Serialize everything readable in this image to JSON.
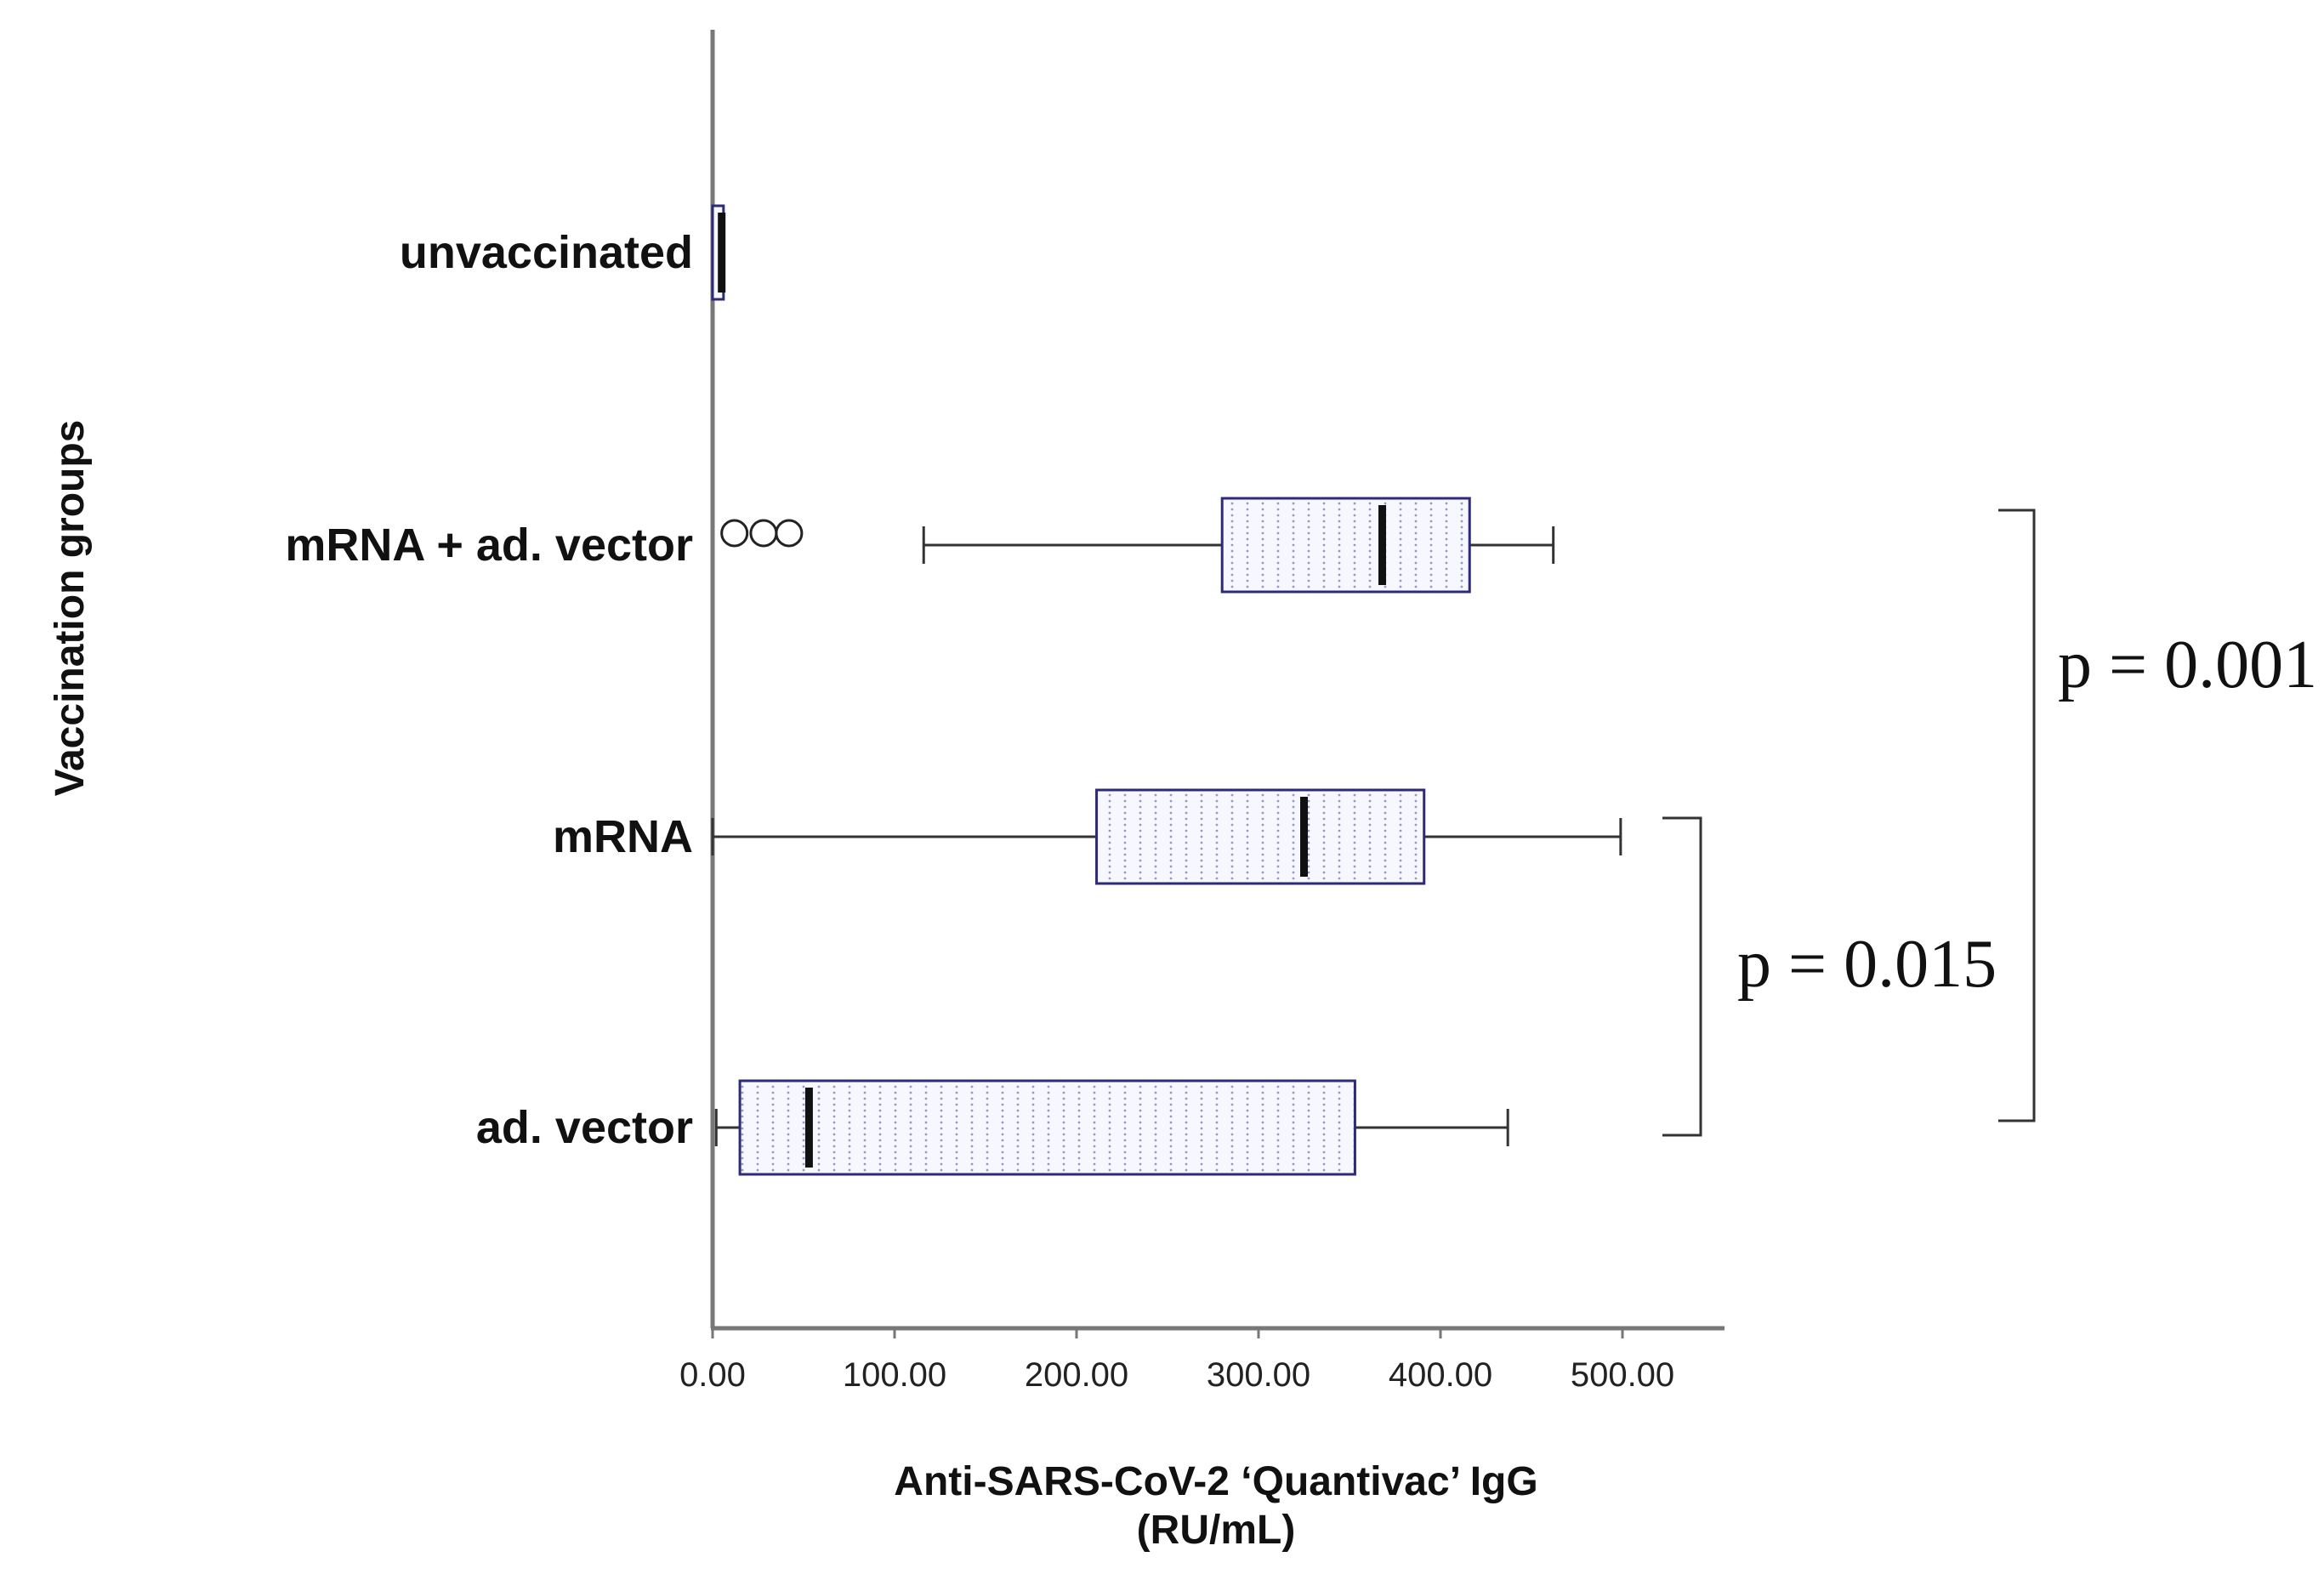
{
  "chart_data": {
    "type": "boxplot",
    "orientation": "horizontal",
    "xlabel": "Anti-SARS-CoV-2 ‘Quantivac’ IgG",
    "xlabel_unit": "(RU/mL)",
    "ylabel": "Vaccination groups",
    "xlim": [
      0,
      550
    ],
    "xticks": [
      0,
      100,
      200,
      300,
      400,
      500
    ],
    "xtick_labels": [
      "0.00",
      "100.00",
      "200.00",
      "300.00",
      "400.00",
      "500.00"
    ],
    "grid": false,
    "groups": [
      {
        "name": "unvaccinated",
        "whisker_low": 0,
        "q1": 0,
        "median": 5,
        "q3": 6,
        "whisker_high": 6,
        "outliers": []
      },
      {
        "name": "mRNA + ad. vector",
        "whisker_low": 116,
        "q1": 280,
        "median": 368,
        "q3": 416,
        "whisker_high": 462,
        "outliers": [
          12,
          28,
          42
        ]
      },
      {
        "name": "mRNA",
        "whisker_low": 0,
        "q1": 211,
        "median": 325,
        "q3": 391,
        "whisker_high": 499,
        "outliers": []
      },
      {
        "name": "ad. vector",
        "whisker_low": 2,
        "q1": 15,
        "median": 53,
        "q3": 353,
        "whisker_high": 437,
        "outliers": []
      }
    ],
    "comparisons": [
      {
        "groups": [
          "mRNA",
          "ad. vector"
        ],
        "label": "p = 0.015"
      },
      {
        "groups": [
          "mRNA + ad. vector",
          "ad. vector"
        ],
        "label": "p = 0.001"
      }
    ],
    "colors": {
      "box_edge": "#2e2a7a",
      "box_fill": "#f7f7ff",
      "stipple": "#9a98c8",
      "axis": "#777777",
      "median": "#111111"
    }
  }
}
